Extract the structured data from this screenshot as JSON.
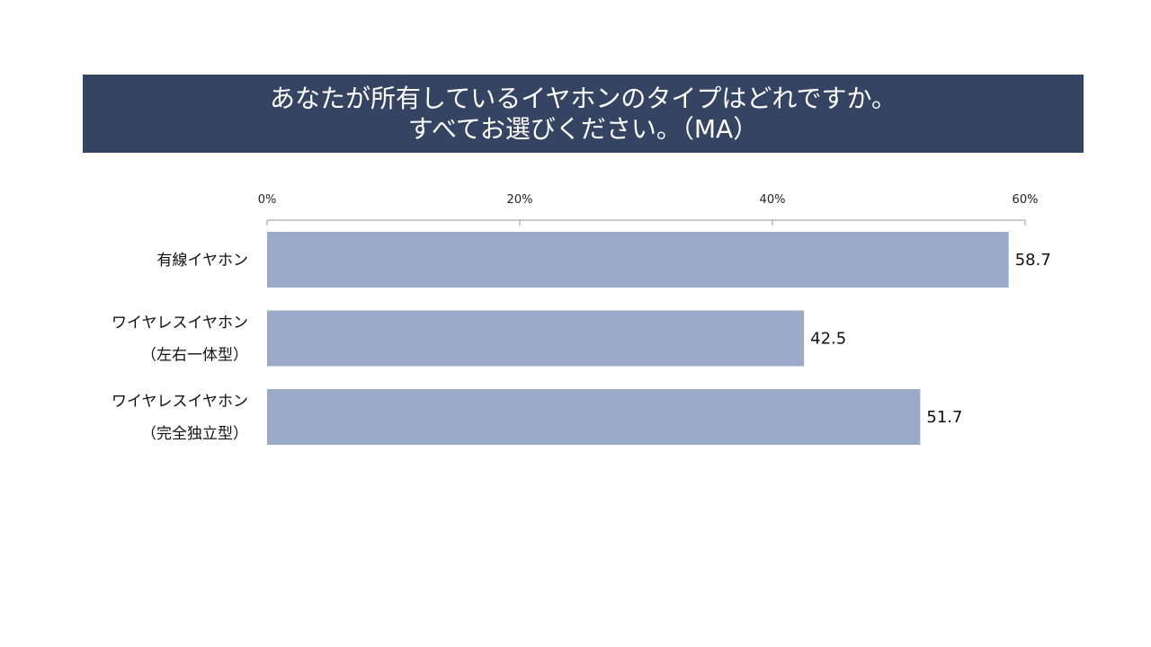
{
  "chart_data": {
    "type": "bar",
    "orientation": "horizontal",
    "title": [
      "あなたが所有しているイヤホンのタイプはどれですか。",
      "すべてお選びください。（MA）"
    ],
    "categories": [
      [
        "有線イヤホン"
      ],
      [
        "ワイヤレスイヤホン",
        "（左右一体型）"
      ],
      [
        "ワイヤレスイヤホン",
        "（完全独立型）"
      ]
    ],
    "values": [
      58.7,
      42.5,
      51.7
    ],
    "xlim": [
      0,
      60
    ],
    "xticks": [
      0,
      20,
      40,
      60
    ],
    "xtick_labels": [
      "0%",
      "20%",
      "40%",
      "60%"
    ],
    "axis_position": "top",
    "grid": false,
    "bar_color": "#9baac8",
    "title_bg_color": "#354463"
  }
}
